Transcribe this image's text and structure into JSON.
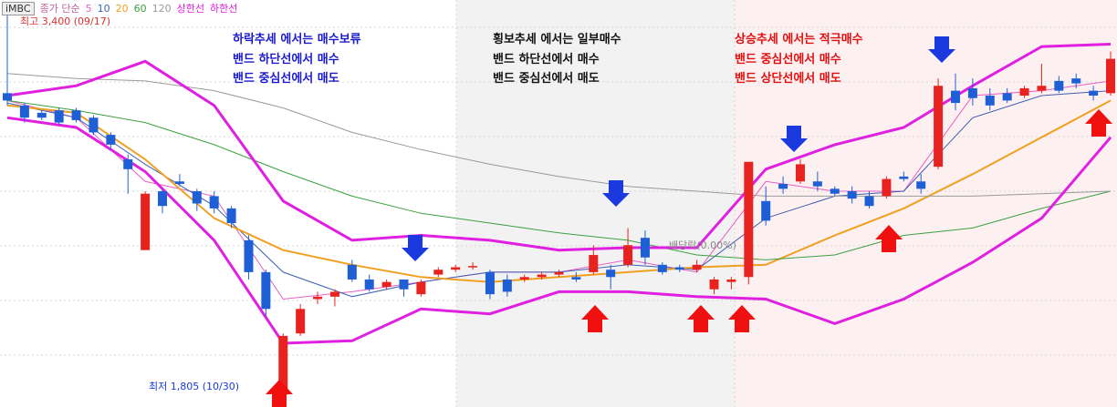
{
  "chart_data": {
    "type": "candlestick",
    "symbol": "iMBC",
    "legend_prefix": "종가 단순",
    "high_label": "최고 3,400 (09/17)",
    "low_label": "최저 1,805 (10/30)",
    "event_label": "배당락(0.00%)",
    "ylim": [
      1780,
      3440
    ],
    "up_color": "#e8231f",
    "down_color": "#1f5fd6",
    "open": [
      3060,
      3010,
      2980,
      2990,
      2990,
      2960,
      2890,
      2790,
      2420,
      2660,
      2700,
      2660,
      2640,
      2590,
      2460,
      2330,
      1830,
      2080,
      2220,
      2230,
      2360,
      2300,
      2270,
      2300,
      2240,
      2320,
      2340,
      2350,
      2330,
      2300,
      2300,
      2310,
      2320,
      2310,
      2330,
      2340,
      2360,
      2470,
      2360,
      2350,
      2340,
      2260,
      2290,
      2310,
      2620,
      2690,
      2700,
      2700,
      2670,
      2660,
      2640,
      2640,
      2720,
      2700,
      2760,
      3070,
      3080,
      3050,
      3060,
      3050,
      3070,
      3110,
      3120,
      3070,
      3060
    ],
    "high": [
      3400,
      3020,
      2990,
      3000,
      3000,
      2970,
      2900,
      2810,
      2660,
      2670,
      2730,
      2670,
      2660,
      2600,
      2480,
      2340,
      2080,
      2200,
      2250,
      2260,
      2380,
      2320,
      2300,
      2300,
      2300,
      2350,
      2360,
      2370,
      2340,
      2320,
      2320,
      2330,
      2340,
      2330,
      2440,
      2360,
      2510,
      2500,
      2370,
      2360,
      2380,
      2310,
      2310,
      2780,
      2680,
      2720,
      2790,
      2740,
      2680,
      2680,
      2660,
      2720,
      2740,
      2730,
      3120,
      3140,
      3120,
      3080,
      3080,
      3090,
      3180,
      3130,
      3140,
      3090,
      3230
    ],
    "low": [
      3010,
      2940,
      2950,
      2930,
      2940,
      2890,
      2830,
      2650,
      2420,
      2570,
      2680,
      2580,
      2570,
      2510,
      2300,
      2150,
      1805,
      2070,
      2200,
      2190,
      2290,
      2250,
      2260,
      2230,
      2230,
      2310,
      2330,
      2340,
      2220,
      2230,
      2290,
      2300,
      2310,
      2290,
      2320,
      2260,
      2350,
      2360,
      2320,
      2330,
      2330,
      2240,
      2260,
      2280,
      2520,
      2650,
      2690,
      2660,
      2640,
      2610,
      2590,
      2630,
      2700,
      2650,
      2750,
      2990,
      3010,
      2990,
      3020,
      3040,
      3060,
      3060,
      3080,
      3030,
      3050
    ],
    "close": [
      3030,
      2960,
      2960,
      2940,
      2950,
      2900,
      2850,
      2750,
      2650,
      2600,
      2690,
      2610,
      2590,
      2530,
      2330,
      2180,
      2070,
      2180,
      2230,
      2250,
      2300,
      2260,
      2290,
      2260,
      2290,
      2340,
      2350,
      2355,
      2240,
      2250,
      2310,
      2320,
      2330,
      2300,
      2400,
      2310,
      2440,
      2390,
      2330,
      2340,
      2360,
      2300,
      2300,
      2780,
      2540,
      2670,
      2770,
      2680,
      2650,
      2630,
      2600,
      2710,
      2710,
      2670,
      3090,
      3020,
      3040,
      3010,
      3030,
      3080,
      3090,
      3070,
      3100,
      3050,
      3200
    ],
    "line_x": [
      0,
      4,
      8,
      12,
      16,
      20,
      24,
      28,
      32,
      36,
      40,
      44,
      48,
      52,
      56,
      60,
      64
    ],
    "series": [
      {
        "name": "5",
        "color": "#e85fc4",
        "width": 1,
        "values": [
          3030,
          2960,
          2700,
          2640,
          2220,
          2250,
          2290,
          2330,
          2330,
          2380,
          2330,
          2700,
          2660,
          2660,
          3050,
          3070,
          3110
        ]
      },
      {
        "name": "10",
        "color": "#3f5fb0",
        "width": 1,
        "values": [
          3020,
          2960,
          2770,
          2600,
          2330,
          2230,
          2290,
          2330,
          2330,
          2360,
          2340,
          2550,
          2640,
          2660,
          2960,
          3050,
          3070
        ]
      },
      {
        "name": "20",
        "color": "#f0a020",
        "width": 2,
        "values": [
          3010,
          2980,
          2790,
          2550,
          2420,
          2360,
          2310,
          2290,
          2310,
          2330,
          2350,
          2360,
          2480,
          2590,
          2730,
          2880,
          3030
        ]
      },
      {
        "name": "60",
        "color": "#3aa040",
        "width": 1,
        "values": [
          3030,
          2990,
          2940,
          2850,
          2740,
          2640,
          2570,
          2530,
          2490,
          2460,
          2400,
          2380,
          2400,
          2480,
          2510,
          2590,
          2660
        ]
      },
      {
        "name": "120",
        "color": "#9a9a9a",
        "width": 1,
        "values": [
          3140,
          3120,
          3110,
          3070,
          3000,
          2900,
          2830,
          2770,
          2720,
          2680,
          2660,
          2640,
          2640,
          2640,
          2640,
          2650,
          2660
        ]
      },
      {
        "name": "상한선",
        "color": "#e020e0",
        "width": 3,
        "values": [
          3050,
          3090,
          3190,
          3010,
          2620,
          2460,
          2480,
          2460,
          2420,
          2430,
          2430,
          2750,
          2850,
          2920,
          3090,
          3250,
          3260
        ]
      },
      {
        "name": "하한선",
        "color": "#e020e0",
        "width": 3,
        "values": [
          2960,
          2920,
          2740,
          2460,
          2040,
          2050,
          2180,
          2160,
          2250,
          2250,
          2230,
          2220,
          2120,
          2220,
          2370,
          2550,
          2880
        ]
      }
    ],
    "annotations": [
      {
        "color": "#1a1acc",
        "lines": [
          "하락추세 에서는 매수보류",
          "밴드 하단선에서 매수",
          "밴드 중심선에서 매도"
        ]
      },
      {
        "color": "#111111",
        "lines": [
          "횡보추세 에서는 일부매수",
          "밴드 하단선에서 매수",
          "밴드 중심선에서 매도"
        ]
      },
      {
        "color": "#e01010",
        "lines": [
          "상승추세 에서는 적극매수",
          "밴드 중심선에서 매수",
          "밴드 상단선에서 매도"
        ]
      }
    ]
  }
}
